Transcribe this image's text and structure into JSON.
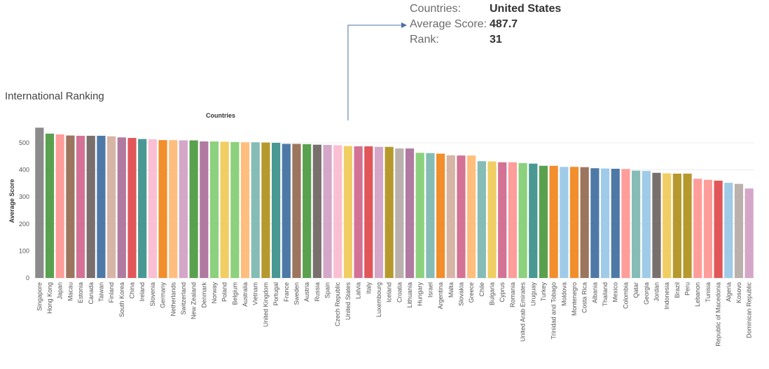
{
  "page": {
    "title": "International Ranking"
  },
  "tooltip": {
    "rows": [
      {
        "label": "Countries:",
        "value": "United States"
      },
      {
        "label": "Average Score:",
        "value": "487.7"
      },
      {
        "label": "Rank:",
        "value": "31"
      }
    ]
  },
  "chart_data": {
    "type": "bar",
    "title": "",
    "xlabel": "Countries",
    "ylabel": "Average Score",
    "ylim": [
      0,
      570
    ],
    "yticks": [
      0,
      100,
      200,
      300,
      400,
      500
    ],
    "grid": true,
    "highlighted": "United States",
    "categories": [
      "Singapore",
      "Hong Kong",
      "Japan",
      "Macau",
      "Estonia",
      "Canada",
      "Taiwan",
      "Finland",
      "South Korea",
      "China",
      "Ireland",
      "Slovenia",
      "Germany",
      "Netherlands",
      "Switzerland",
      "New Zealand",
      "Denmark",
      "Norway",
      "Poland",
      "Belgium",
      "Australia",
      "Vietnam",
      "United Kingdom",
      "Portugal",
      "France",
      "Sweden",
      "Austria",
      "Russia",
      "Spain",
      "Czech Republic",
      "United States",
      "Latvia",
      "Italy",
      "Luxembourg",
      "Iceland",
      "Croatia",
      "Lithuania",
      "Hungary",
      "Israel",
      "Argentina",
      "Malta",
      "Slovakia",
      "Greece",
      "Chile",
      "Bulgaria",
      "Cyprus",
      "Romania",
      "United Arab Emirates",
      "Uruguay",
      "Turkey",
      "Trinidad and Tobago",
      "Moldova",
      "Montenegro",
      "Costa Rica",
      "Albania",
      "Thailand",
      "Mexico",
      "Colombia",
      "Qatar",
      "Georgia",
      "Jordan",
      "Indonesia",
      "Brazil",
      "Peru",
      "Lebanon",
      "Tunisia",
      "Republic of Macedonia",
      "Algeria",
      "Kosovo",
      "Dominican Republic"
    ],
    "values": [
      556,
      534,
      531,
      527,
      526,
      526,
      526,
      524,
      520,
      518,
      514,
      513,
      510,
      510,
      509,
      509,
      505,
      505,
      504,
      503,
      502,
      502,
      501,
      500,
      496,
      496,
      495,
      493,
      492,
      491,
      488,
      487,
      487,
      485,
      485,
      479,
      479,
      463,
      462,
      460,
      454,
      453,
      453,
      432,
      431,
      428,
      428,
      425,
      423,
      415,
      415,
      411,
      411,
      410,
      406,
      405,
      404,
      403,
      397,
      396,
      389,
      387,
      386,
      386,
      367,
      363,
      360,
      352,
      348,
      331
    ],
    "colors": [
      "#8b8b8b",
      "#59a14f",
      "#ff9d9a",
      "#9c755f",
      "#d37295",
      "#79706e",
      "#4e79a7",
      "#d7b5a6",
      "#b07aa1",
      "#e15759",
      "#499894",
      "#fabfd2",
      "#f28e2b",
      "#ffbe7d",
      "#d4a6c8",
      "#59a14f",
      "#b07aa1",
      "#8cd17d",
      "#f1ce63",
      "#8cd17d",
      "#ffbe7d",
      "#86bcb6",
      "#b6992d",
      "#499894",
      "#4e79a7",
      "#9c755f",
      "#59a14f",
      "#79706e",
      "#d4a6c8",
      "#fabfd2",
      "#f1ce63",
      "#d37295",
      "#e15759",
      "#d4a6c8",
      "#b6992d",
      "#bab0ac",
      "#b07aa1",
      "#8cd17d",
      "#86bcb6",
      "#f28e2b",
      "#d7b5a6",
      "#d37295",
      "#ffbe7d",
      "#86bcb6",
      "#f1ce63",
      "#d37295",
      "#ff9d9a",
      "#8cd17d",
      "#499894",
      "#59a14f",
      "#f28e2b",
      "#a0cbe8",
      "#f28e2b",
      "#9c755f",
      "#4e79a7",
      "#a0cbe8",
      "#4e79a7",
      "#ff9d9a",
      "#86bcb6",
      "#a0cbe8",
      "#79706e",
      "#f1ce63",
      "#b6992d",
      "#b6992d",
      "#ff9d9a",
      "#ff9d9a",
      "#e15759",
      "#a0cbe8",
      "#bab0ac",
      "#d4a6c8"
    ]
  }
}
